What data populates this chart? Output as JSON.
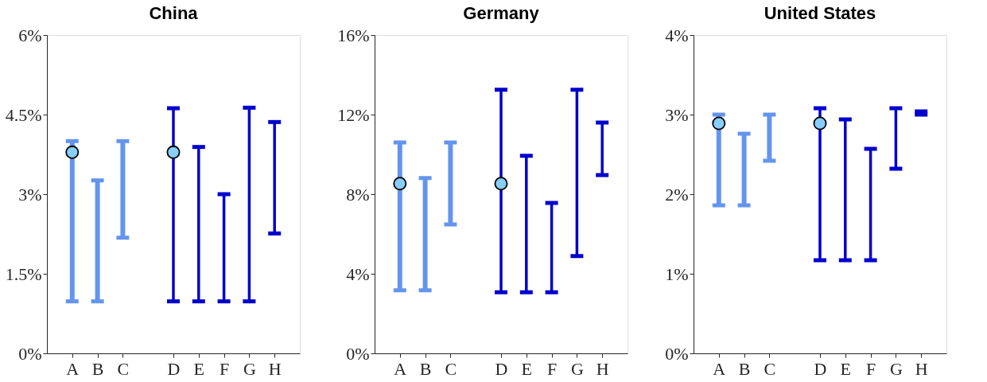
{
  "chart_data": [
    {
      "type": "bar",
      "title": "China",
      "categories": [
        "A",
        "B",
        "C",
        null,
        "D",
        "E",
        "F",
        "G",
        "H"
      ],
      "ylim": [
        0,
        6
      ],
      "yticks": [
        {
          "value": 0,
          "label": "0%"
        },
        {
          "value": 1.5,
          "label": "1.5%"
        },
        {
          "value": 3,
          "label": "3%"
        },
        {
          "value": 4.5,
          "label": "4.5%"
        },
        {
          "value": 6,
          "label": "6%"
        }
      ],
      "series": [
        {
          "color": "#6495ed",
          "base": [
            0.98,
            0.98,
            2.18,
            null,
            null,
            null,
            null,
            null,
            null
          ],
          "values": [
            3.02,
            2.28,
            1.82,
            null,
            null,
            null,
            null,
            null,
            null
          ]
        },
        {
          "color": "#0000cd",
          "base": [
            null,
            null,
            null,
            null,
            0.98,
            0.98,
            0.98,
            0.98,
            2.26
          ],
          "values": [
            null,
            null,
            null,
            null,
            3.64,
            2.91,
            2.02,
            3.65,
            2.1
          ]
        },
        {
          "type": "scatter",
          "color": "#87cefa",
          "x": [
            "A",
            "D"
          ],
          "values": [
            3.79,
            3.79
          ]
        }
      ]
    },
    {
      "type": "bar",
      "title": "Germany",
      "categories": [
        "A",
        "B",
        "C",
        null,
        "D",
        "E",
        "F",
        "G",
        "H"
      ],
      "ylim": [
        0,
        16
      ],
      "yticks": [
        {
          "value": 0,
          "label": "0%"
        },
        {
          "value": 4,
          "label": "4%"
        },
        {
          "value": 8,
          "label": "8%"
        },
        {
          "value": 12,
          "label": "12%"
        },
        {
          "value": 16,
          "label": "16%"
        }
      ],
      "series": [
        {
          "color": "#6495ed",
          "base": [
            3.17,
            3.17,
            6.48,
            null,
            null,
            null,
            null,
            null,
            null
          ],
          "values": [
            7.43,
            5.64,
            4.12,
            null,
            null,
            null,
            null,
            null,
            null
          ]
        },
        {
          "color": "#0000cd",
          "base": [
            null,
            null,
            null,
            null,
            3.07,
            3.07,
            3.07,
            4.89,
            8.96
          ],
          "values": [
            null,
            null,
            null,
            null,
            10.18,
            6.86,
            4.49,
            8.36,
            2.64
          ]
        },
        {
          "type": "scatter",
          "color": "#87cefa",
          "x": [
            "A",
            "D"
          ],
          "values": [
            8.53,
            8.53
          ]
        }
      ]
    },
    {
      "type": "bar",
      "title": "United States",
      "categories": [
        "A",
        "B",
        "C",
        null,
        "D",
        "E",
        "F",
        "G",
        "H"
      ],
      "ylim": [
        0,
        4
      ],
      "yticks": [
        {
          "value": 0,
          "label": "0%"
        },
        {
          "value": 1,
          "label": "1%"
        },
        {
          "value": 2,
          "label": "2%"
        },
        {
          "value": 3,
          "label": "3%"
        },
        {
          "value": 4,
          "label": "4%"
        }
      ],
      "series": [
        {
          "color": "#6495ed",
          "base": [
            1.86,
            1.86,
            2.42,
            null,
            null,
            null,
            null,
            null,
            null
          ],
          "values": [
            1.14,
            0.9,
            0.58,
            null,
            null,
            null,
            null,
            null,
            null
          ]
        },
        {
          "color": "#0000cd",
          "base": [
            null,
            null,
            null,
            null,
            1.17,
            1.17,
            1.17,
            2.32,
            3.0
          ],
          "values": [
            null,
            null,
            null,
            null,
            1.91,
            1.77,
            1.4,
            0.76,
            0.04
          ]
        },
        {
          "type": "scatter",
          "color": "#87cefa",
          "x": [
            "A",
            "D"
          ],
          "values": [
            2.89,
            2.89
          ]
        }
      ]
    }
  ]
}
